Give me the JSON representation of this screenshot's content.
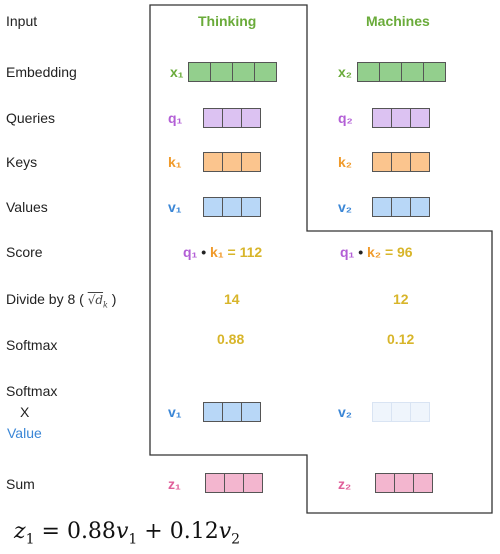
{
  "rows": {
    "input": "Input",
    "embedding": "Embedding",
    "queries": "Queries",
    "keys": "Keys",
    "values": "Values",
    "score": "Score",
    "divide": "Divide by 8 (",
    "divide_sqrt": "√d",
    "divide_sub": "k",
    "divide_close": ")",
    "softmax": "Softmax",
    "softmax_x_1": "Softmax",
    "softmax_x_2": "X",
    "softmax_x_3": "Value",
    "sum": "Sum"
  },
  "words": {
    "w1": "Thinking",
    "w2": "Machines"
  },
  "symbols": {
    "x1": "x₁",
    "x2": "x₂",
    "q1": "q₁",
    "q2": "q₂",
    "k1": "k₁",
    "k2": "k₂",
    "v1": "v₁",
    "v2": "v₂",
    "z1": "z₁",
    "z2": "z₂"
  },
  "score": {
    "s1_q": "q₁",
    "s1_dot": "•",
    "s1_k": "k₁",
    "s1_eq": "= 112",
    "s2_q": "q₁",
    "s2_dot": "•",
    "s2_k": "k₂",
    "s2_eq": "= 96"
  },
  "divide_values": {
    "d1": "14",
    "d2": "12"
  },
  "softmax_values": {
    "s1": "0.88",
    "s2": "0.12"
  },
  "formula": {
    "lhs": "z",
    "lhs_sub": "1",
    "eq": "= 0.88",
    "v": "v",
    "v_sub1": "1",
    "plus": "+ 0.12",
    "v2": "v",
    "v_sub2": "2"
  },
  "colors": {
    "green": "#6aab3a",
    "green_fill": "#93cf8d",
    "purple": "#b35fd6",
    "purple_fill": "#dcc2f2",
    "orange": "#f09a2a",
    "orange_fill": "#fbc58e",
    "blue": "#3a86d6",
    "blue_fill": "#b8d7f7",
    "blue_faint": "#e9f2fb",
    "pink": "#e0609a",
    "pink_fill": "#f3b6cf",
    "gold": "#d8b52a"
  }
}
